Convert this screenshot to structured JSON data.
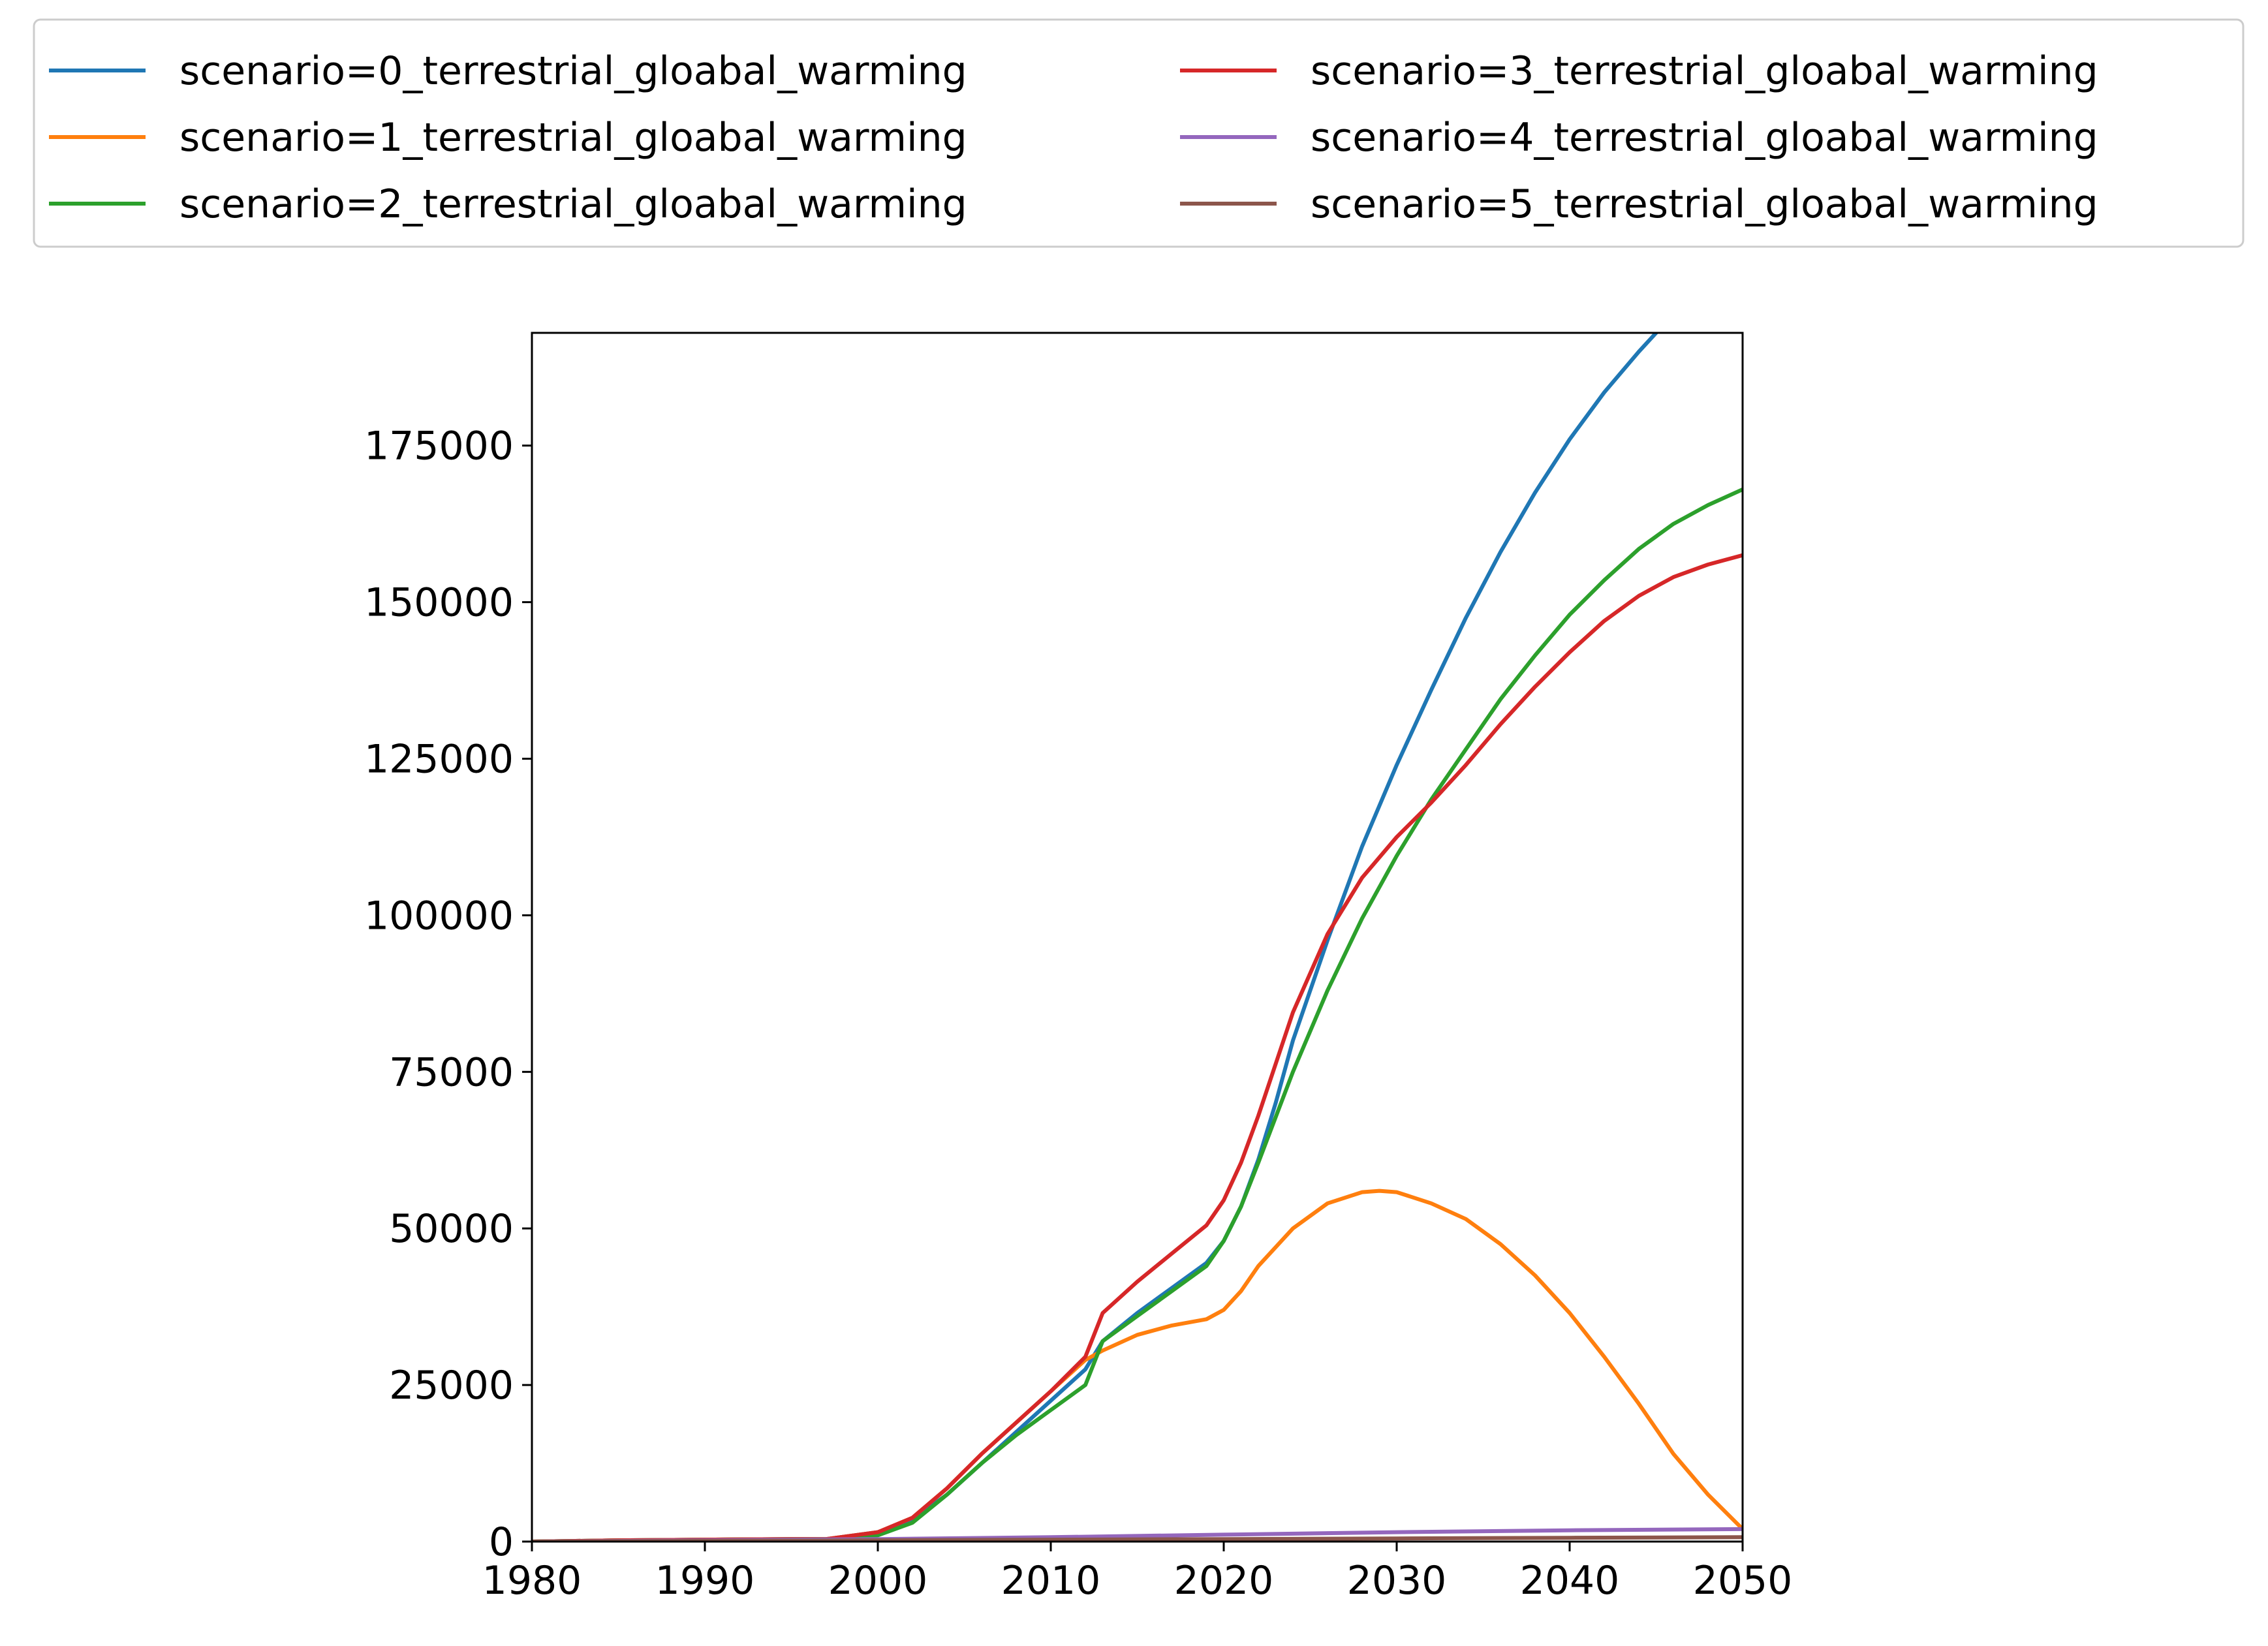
{
  "chart_data": {
    "type": "line",
    "title": "",
    "xlabel": "",
    "ylabel": "",
    "xlim": [
      1980,
      2050
    ],
    "ylim": [
      0,
      193000
    ],
    "x_ticks": [
      1980,
      1990,
      2000,
      2010,
      2020,
      2030,
      2040,
      2050
    ],
    "y_ticks": [
      0,
      25000,
      50000,
      75000,
      100000,
      125000,
      150000,
      175000
    ],
    "grid": false,
    "legend": {
      "placement": "top-center-outside",
      "columns": 2
    },
    "series": [
      {
        "name": "scenario=0_terrestrial_gloabal_warming",
        "color": "#1f77b4",
        "points": [
          [
            1980,
            0
          ],
          [
            1985,
            200
          ],
          [
            1990,
            300
          ],
          [
            1995,
            400
          ],
          [
            1997,
            400
          ],
          [
            2000,
            1500
          ],
          [
            2002,
            3500
          ],
          [
            2004,
            7500
          ],
          [
            2006,
            12500
          ],
          [
            2008,
            17500
          ],
          [
            2010,
            22500
          ],
          [
            2012,
            27500
          ],
          [
            2013,
            32000
          ],
          [
            2015,
            36500
          ],
          [
            2017,
            40500
          ],
          [
            2019,
            44500
          ],
          [
            2020,
            48000
          ],
          [
            2021,
            53500
          ],
          [
            2022,
            61000
          ],
          [
            2023,
            70000
          ],
          [
            2024,
            80000
          ],
          [
            2026,
            96000
          ],
          [
            2028,
            111000
          ],
          [
            2030,
            124000
          ],
          [
            2032,
            136000
          ],
          [
            2034,
            147500
          ],
          [
            2036,
            158000
          ],
          [
            2038,
            167500
          ],
          [
            2040,
            176000
          ],
          [
            2042,
            183500
          ],
          [
            2044,
            190000
          ],
          [
            2046,
            196000
          ],
          [
            2048,
            201500
          ],
          [
            2050,
            193000
          ]
        ]
      },
      {
        "name": "scenario=1_terrestrial_gloabal_warming",
        "color": "#ff7f0e",
        "points": [
          [
            1980,
            0
          ],
          [
            1985,
            200
          ],
          [
            1990,
            300
          ],
          [
            1995,
            400
          ],
          [
            1997,
            400
          ],
          [
            2000,
            1500
          ],
          [
            2002,
            3800
          ],
          [
            2004,
            8500
          ],
          [
            2006,
            14000
          ],
          [
            2008,
            19000
          ],
          [
            2010,
            24000
          ],
          [
            2012,
            29000
          ],
          [
            2013,
            30500
          ],
          [
            2015,
            33000
          ],
          [
            2017,
            34500
          ],
          [
            2019,
            35500
          ],
          [
            2020,
            37000
          ],
          [
            2021,
            40000
          ],
          [
            2022,
            44000
          ],
          [
            2024,
            50000
          ],
          [
            2026,
            54000
          ],
          [
            2028,
            55800
          ],
          [
            2029,
            56000
          ],
          [
            2030,
            55800
          ],
          [
            2032,
            54000
          ],
          [
            2034,
            51500
          ],
          [
            2036,
            47500
          ],
          [
            2038,
            42500
          ],
          [
            2040,
            36500
          ],
          [
            2042,
            29500
          ],
          [
            2044,
            22000
          ],
          [
            2046,
            14000
          ],
          [
            2048,
            7500
          ],
          [
            2050,
            2000
          ]
        ]
      },
      {
        "name": "scenario=2_terrestrial_gloabal_warming",
        "color": "#2ca02c",
        "points": [
          [
            1980,
            0
          ],
          [
            1985,
            200
          ],
          [
            1990,
            300
          ],
          [
            1995,
            400
          ],
          [
            1997,
            400
          ],
          [
            2000,
            1000
          ],
          [
            2002,
            3000
          ],
          [
            2004,
            7500
          ],
          [
            2006,
            12500
          ],
          [
            2008,
            17000
          ],
          [
            2010,
            21000
          ],
          [
            2012,
            25000
          ],
          [
            2013,
            32000
          ],
          [
            2015,
            36000
          ],
          [
            2017,
            40000
          ],
          [
            2019,
            44000
          ],
          [
            2020,
            48000
          ],
          [
            2021,
            53500
          ],
          [
            2022,
            60500
          ],
          [
            2024,
            75000
          ],
          [
            2026,
            88000
          ],
          [
            2028,
            99500
          ],
          [
            2030,
            109500
          ],
          [
            2032,
            118500
          ],
          [
            2034,
            126500
          ],
          [
            2036,
            134500
          ],
          [
            2038,
            141500
          ],
          [
            2040,
            148000
          ],
          [
            2042,
            153500
          ],
          [
            2044,
            158500
          ],
          [
            2046,
            162500
          ],
          [
            2048,
            165500
          ],
          [
            2050,
            168000
          ]
        ]
      },
      {
        "name": "scenario=3_terrestrial_gloabal_warming",
        "color": "#d62728",
        "points": [
          [
            1980,
            0
          ],
          [
            1985,
            200
          ],
          [
            1990,
            300
          ],
          [
            1995,
            400
          ],
          [
            1997,
            400
          ],
          [
            2000,
            1500
          ],
          [
            2002,
            3800
          ],
          [
            2004,
            8500
          ],
          [
            2006,
            14000
          ],
          [
            2008,
            19000
          ],
          [
            2010,
            24000
          ],
          [
            2012,
            29500
          ],
          [
            2013,
            36500
          ],
          [
            2015,
            41500
          ],
          [
            2017,
            46000
          ],
          [
            2019,
            50500
          ],
          [
            2020,
            54500
          ],
          [
            2021,
            60500
          ],
          [
            2022,
            68000
          ],
          [
            2024,
            84500
          ],
          [
            2026,
            97000
          ],
          [
            2028,
            106000
          ],
          [
            2030,
            112500
          ],
          [
            2032,
            118000
          ],
          [
            2034,
            124000
          ],
          [
            2036,
            130500
          ],
          [
            2038,
            136500
          ],
          [
            2040,
            142000
          ],
          [
            2042,
            147000
          ],
          [
            2044,
            151000
          ],
          [
            2046,
            154000
          ],
          [
            2048,
            156000
          ],
          [
            2050,
            157500
          ]
        ]
      },
      {
        "name": "scenario=4_terrestrial_gloabal_warming",
        "color": "#9467bd",
        "points": [
          [
            1980,
            0
          ],
          [
            1990,
            200
          ],
          [
            2000,
            400
          ],
          [
            2010,
            700
          ],
          [
            2020,
            1100
          ],
          [
            2030,
            1500
          ],
          [
            2040,
            1800
          ],
          [
            2050,
            2000
          ]
        ]
      },
      {
        "name": "scenario=5_terrestrial_gloabal_warming",
        "color": "#8c564b",
        "points": [
          [
            1980,
            0
          ],
          [
            1990,
            100
          ],
          [
            2000,
            200
          ],
          [
            2010,
            300
          ],
          [
            2020,
            400
          ],
          [
            2030,
            500
          ],
          [
            2040,
            600
          ],
          [
            2050,
            700
          ]
        ]
      }
    ]
  }
}
